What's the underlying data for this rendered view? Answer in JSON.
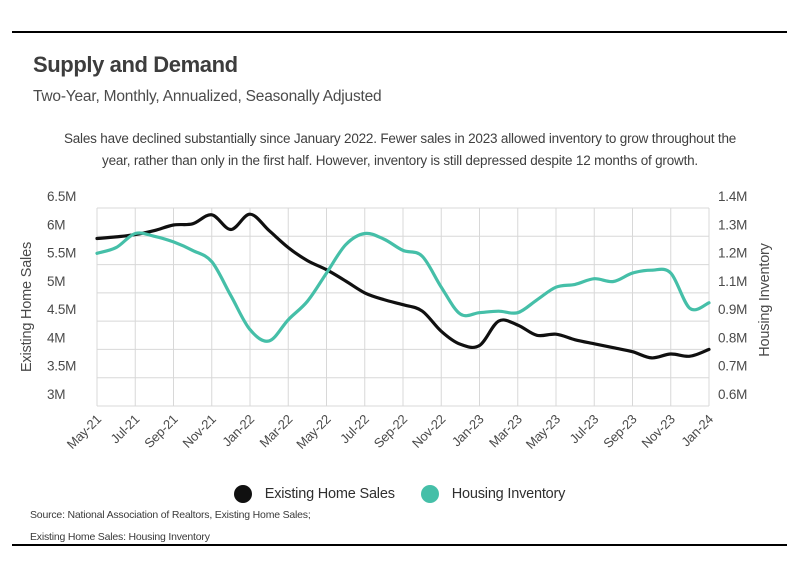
{
  "page": {
    "title": "Supply and Demand",
    "subtitle": "Two-Year, Monthly, Annualized, Seasonally Adjusted",
    "description": "Sales have declined substantially since January 2022. Fewer sales in 2023 allowed inventory to grow throughout the year, rather than only in the first half. However, inventory is still depressed despite 12 months of growth.",
    "source_line1": "Source:  National Association of Realtors, Existing Home Sales;",
    "source_line2": "Existing Home Sales: Housing Inventory"
  },
  "legend": [
    {
      "label": "Existing Home Sales",
      "color": "#101010"
    },
    {
      "label": "Housing Inventory",
      "color": "#45BFA8"
    }
  ],
  "colors": {
    "grid": "#d8d8d8",
    "axis_text": "#4a4a4a",
    "black_line": "#101010",
    "teal_line": "#45BFA8"
  },
  "chart_data": {
    "type": "line",
    "title": "Supply and Demand",
    "months": [
      "May-21",
      "Jun-21",
      "Jul-21",
      "Aug-21",
      "Sep-21",
      "Oct-21",
      "Nov-21",
      "Dec-21",
      "Jan-22",
      "Feb-22",
      "Mar-22",
      "Apr-22",
      "May-22",
      "Jun-22",
      "Jul-22",
      "Aug-22",
      "Sep-22",
      "Oct-22",
      "Nov-22",
      "Dec-22",
      "Jan-23",
      "Feb-23",
      "Mar-23",
      "Apr-23",
      "May-23",
      "Jun-23",
      "Jul-23",
      "Aug-23",
      "Sep-23",
      "Oct-23",
      "Nov-23",
      "Dec-23",
      "Jan-24"
    ],
    "x_tick_labels": [
      "May-21",
      "Jul-21",
      "Sep-21",
      "Nov-21",
      "Jan-22",
      "Mar-22",
      "May-22",
      "Jul-22",
      "Sep-22",
      "Nov-22",
      "Jan-23",
      "Mar-23",
      "May-23",
      "Jul-23",
      "Sep-23",
      "Nov-23",
      "Jan-24"
    ],
    "axes": {
      "left": {
        "label": "Existing Home Sales",
        "ticks": [
          "6.5M",
          "6M",
          "5.5M",
          "5M",
          "4.5M",
          "4M",
          "3.5M",
          "3M"
        ],
        "tick_values": [
          6.5,
          6.0,
          5.5,
          5.0,
          4.5,
          4.0,
          3.5,
          3.0
        ],
        "ylim": [
          3.0,
          6.5
        ]
      },
      "right": {
        "label": "Housing Inventory",
        "ticks": [
          "1.4M",
          "1.3M",
          "1.2M",
          "1.1M",
          "0.9M",
          "0.8M",
          "0.7M",
          "0.6M"
        ],
        "tick_values": [
          1.4,
          1.3,
          1.2,
          1.1,
          0.9,
          0.8,
          0.7,
          0.6
        ],
        "ylim": [
          0.6,
          1.4
        ]
      }
    },
    "grid": true,
    "legend_position": "bottom",
    "series": [
      {
        "name": "Existing Home Sales",
        "axis": "left",
        "color": "#101010",
        "unit": "M",
        "values": [
          5.96,
          5.99,
          6.03,
          6.1,
          6.2,
          6.22,
          6.38,
          6.12,
          6.39,
          6.1,
          5.8,
          5.57,
          5.41,
          5.21,
          5.0,
          4.88,
          4.79,
          4.68,
          4.32,
          4.09,
          4.07,
          4.5,
          4.43,
          4.25,
          4.27,
          4.17,
          4.1,
          4.03,
          3.96,
          3.85,
          3.92,
          3.88,
          4.0
        ]
      },
      {
        "name": "Housing Inventory",
        "axis": "right",
        "color": "#45BFA8",
        "unit": "M",
        "values": [
          1.24,
          1.26,
          1.31,
          1.3,
          1.28,
          1.25,
          1.21,
          1.08,
          0.87,
          0.83,
          0.91,
          1.04,
          1.17,
          1.27,
          1.31,
          1.29,
          1.25,
          1.23,
          1.12,
          0.95,
          0.96,
          0.97,
          0.96,
          1.05,
          1.12,
          1.13,
          1.15,
          1.14,
          1.17,
          1.18,
          1.17,
          0.99,
          1.03
        ]
      }
    ]
  }
}
